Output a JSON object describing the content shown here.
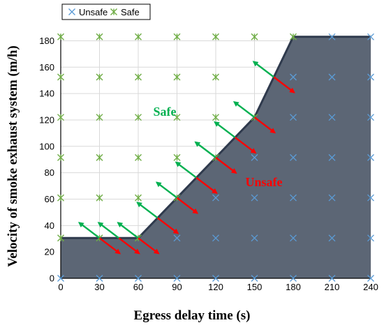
{
  "chart_data": {
    "type": "scatter",
    "xlabel": "Egress delay time  (s)",
    "ylabel": "Velocity of smoke exhaust system (m/h)",
    "xlim": [
      0,
      240
    ],
    "ylim": [
      0,
      185
    ],
    "x_ticks": [
      0,
      30,
      60,
      90,
      120,
      150,
      180,
      210,
      240
    ],
    "y_ticks": [
      0,
      20,
      40,
      60,
      80,
      100,
      120,
      140,
      160,
      180
    ],
    "grid": true,
    "legend": {
      "position": "top-left",
      "entries": [
        "Unsafe",
        "Safe"
      ]
    },
    "series": [
      {
        "name": "Unsafe",
        "marker": "x",
        "color": "#5b9bd5",
        "points": [
          [
            0,
            0
          ],
          [
            30,
            0
          ],
          [
            60,
            0
          ],
          [
            90,
            0
          ],
          [
            120,
            0
          ],
          [
            150,
            0
          ],
          [
            180,
            0
          ],
          [
            210,
            0
          ],
          [
            240,
            0
          ],
          [
            90,
            30.5
          ],
          [
            120,
            30.5
          ],
          [
            150,
            30.5
          ],
          [
            180,
            30.5
          ],
          [
            210,
            30.5
          ],
          [
            240,
            30.5
          ],
          [
            120,
            61
          ],
          [
            150,
            61
          ],
          [
            180,
            61
          ],
          [
            210,
            61
          ],
          [
            240,
            61
          ],
          [
            150,
            91.5
          ],
          [
            180,
            91.5
          ],
          [
            210,
            91.5
          ],
          [
            240,
            91.5
          ],
          [
            180,
            122
          ],
          [
            210,
            122
          ],
          [
            240,
            122
          ],
          [
            180,
            152.5
          ],
          [
            210,
            152.5
          ],
          [
            240,
            152.5
          ],
          [
            210,
            183
          ],
          [
            240,
            183
          ]
        ]
      },
      {
        "name": "Safe",
        "marker": "asterisk",
        "color": "#70ad47",
        "points": [
          [
            0,
            30.5
          ],
          [
            30,
            30.5
          ],
          [
            60,
            30.5
          ],
          [
            0,
            61
          ],
          [
            30,
            61
          ],
          [
            60,
            61
          ],
          [
            90,
            61
          ],
          [
            0,
            91.5
          ],
          [
            30,
            91.5
          ],
          [
            60,
            91.5
          ],
          [
            90,
            91.5
          ],
          [
            120,
            91.5
          ],
          [
            0,
            122
          ],
          [
            30,
            122
          ],
          [
            60,
            122
          ],
          [
            90,
            122
          ],
          [
            120,
            122
          ],
          [
            150,
            122
          ],
          [
            0,
            152.5
          ],
          [
            30,
            152.5
          ],
          [
            60,
            152.5
          ],
          [
            90,
            152.5
          ],
          [
            120,
            152.5
          ],
          [
            0,
            183
          ],
          [
            30,
            183
          ],
          [
            60,
            183
          ],
          [
            90,
            183
          ],
          [
            120,
            183
          ],
          [
            150,
            183
          ],
          [
            180,
            183
          ]
        ]
      }
    ],
    "boundary": [
      [
        0,
        30.5
      ],
      [
        60,
        30.5
      ],
      [
        150,
        122
      ],
      [
        180,
        183
      ],
      [
        240,
        183
      ]
    ],
    "annotations": {
      "safe_label": "Safe",
      "unsafe_label": "Unsafe",
      "safe_color": "#00b050",
      "unsafe_color": "#ff0000",
      "unsafe_region_fill": "#5c6675"
    },
    "arrows_at_x": [
      30,
      45,
      60,
      75,
      90,
      105,
      120,
      135,
      150,
      165
    ]
  }
}
